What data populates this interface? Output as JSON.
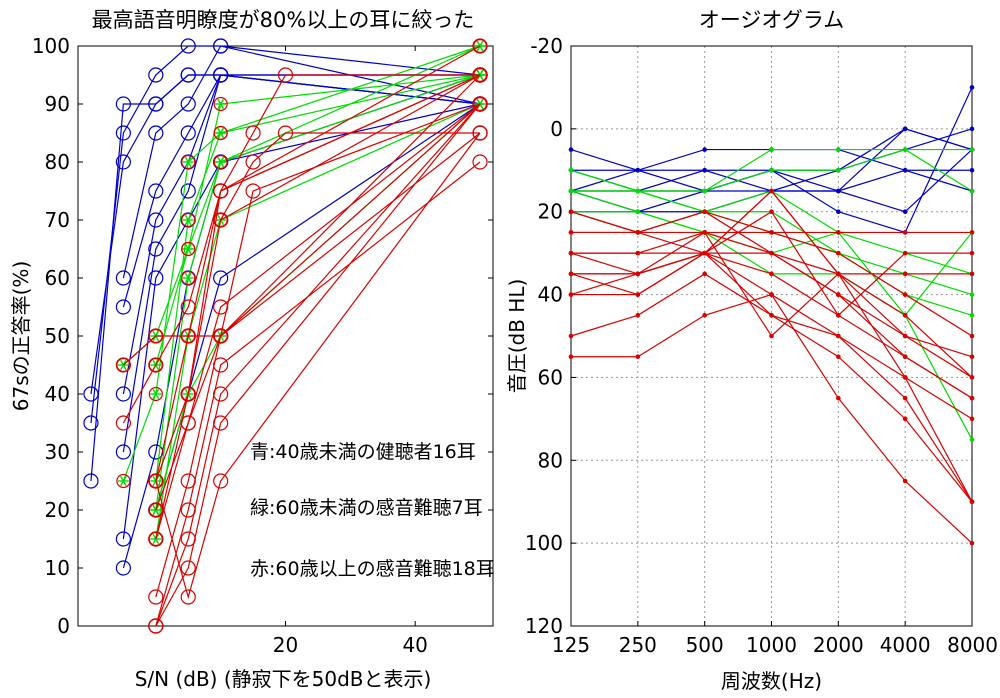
{
  "chart_data": [
    {
      "type": "line",
      "title": "最高語音明瞭度が80%以上の耳に絞った",
      "xlabel": "S/N (dB) (静寂下を50dBと表示)",
      "ylabel": "67sの正答率(%)",
      "xlim": [
        -12,
        52
      ],
      "ylim": [
        0,
        100
      ],
      "xticks": [
        "20",
        "40"
      ],
      "xtick_values": [
        20,
        40
      ],
      "yticks": [
        "0",
        "10",
        "20",
        "30",
        "40",
        "50",
        "60",
        "70",
        "80",
        "90",
        "100"
      ],
      "grid": false,
      "annotations": [
        "青:40歳未満の健聴者16耳",
        "緑:60歳未満の感音難聴7耳",
        "赤:60歳以上の感音難聴18耳"
      ],
      "x": [
        -10,
        -5,
        0,
        5,
        10,
        50
      ],
      "series": [
        {
          "color": "#0000cc",
          "values": [
            25,
            90,
            90,
            95,
            95,
            95
          ]
        },
        {
          "color": "#0000cc",
          "values": [
            35,
            85,
            95,
            100,
            100,
            95
          ]
        },
        {
          "color": "#0000cc",
          "values": [
            40,
            80,
            90,
            95,
            95,
            90
          ]
        },
        {
          "color": "#0000cc",
          "values": [
            null,
            60,
            85,
            90,
            100,
            90
          ]
        },
        {
          "color": "#0000cc",
          "values": [
            null,
            55,
            75,
            85,
            95,
            95
          ]
        },
        {
          "color": "#0000cc",
          "values": [
            null,
            40,
            70,
            80,
            95,
            90
          ]
        },
        {
          "color": "#0000cc",
          "values": [
            null,
            30,
            65,
            75,
            95,
            90
          ]
        },
        {
          "color": "#0000cc",
          "values": [
            null,
            15,
            60,
            70,
            80,
            95
          ]
        },
        {
          "color": "#0000cc",
          "values": [
            null,
            10,
            30,
            60,
            80,
            90
          ]
        },
        {
          "color": "#0000cc",
          "values": [
            null,
            null,
            20,
            40,
            60,
            90
          ]
        },
        {
          "color": "#00dd00",
          "values": [
            null,
            45,
            50,
            65,
            90,
            95
          ]
        },
        {
          "color": "#00dd00",
          "values": [
            null,
            25,
            40,
            80,
            85,
            100
          ]
        },
        {
          "color": "#00dd00",
          "values": [
            null,
            null,
            25,
            70,
            85,
            95
          ]
        },
        {
          "color": "#00dd00",
          "values": [
            null,
            null,
            20,
            60,
            80,
            95
          ]
        },
        {
          "color": "#00dd00",
          "values": [
            null,
            null,
            15,
            50,
            70,
            90
          ]
        },
        {
          "color": "#00dd00",
          "values": [
            null,
            null,
            45,
            65,
            80,
            100
          ]
        },
        {
          "color": "#00dd00",
          "values": [
            null,
            null,
            20,
            40,
            50,
            90
          ]
        },
        {
          "color": "#dd0000",
          "values": [
            null,
            45,
            50,
            50,
            50,
            95
          ]
        },
        {
          "color": "#dd0000",
          "values": [
            null,
            35,
            45,
            55,
            75,
            100
          ]
        },
        {
          "color": "#dd0000",
          "values": [
            null,
            null,
            25,
            40,
            70,
            95
          ]
        },
        {
          "color": "#dd0000",
          "values": [
            null,
            null,
            15,
            35,
            55,
            90
          ]
        },
        {
          "color": "#dd0000",
          "values": [
            null,
            null,
            5,
            25,
            50,
            85
          ]
        },
        {
          "color": "#dd0000",
          "values": [
            null,
            null,
            0,
            20,
            45,
            80
          ]
        },
        {
          "color": "#dd0000",
          "values": [
            null,
            null,
            0,
            15,
            40,
            90
          ]
        },
        {
          "color": "#dd0000",
          "values": [
            null,
            null,
            0,
            10,
            35,
            90
          ]
        },
        {
          "color": "#dd0000",
          "values": [
            null,
            null,
            25,
            5,
            25,
            85
          ]
        },
        {
          "color": "#dd0000",
          "values": [
            null,
            null,
            15,
            40,
            75,
            95
          ]
        },
        {
          "color": "#dd0000",
          "values": [
            null,
            null,
            20,
            35,
            50,
            90
          ]
        },
        {
          "color": "#dd0000",
          "values": [
            null,
            null,
            25,
            50,
            75,
            95
          ]
        }
      ],
      "extra_segments": [
        {
          "color": "#dd0000",
          "x": [
            10,
            15,
            20,
            50
          ],
          "y": [
            75,
            85,
            95,
            95
          ]
        },
        {
          "color": "#dd0000",
          "x": [
            10,
            15,
            20,
            50
          ],
          "y": [
            70,
            80,
            85,
            85
          ]
        },
        {
          "color": "#dd0000",
          "x": [
            10,
            15,
            50
          ],
          "y": [
            50,
            75,
            90
          ]
        }
      ]
    },
    {
      "type": "line",
      "title": "オージオグラム",
      "xlabel": "周波数(Hz)",
      "ylabel": "音圧(dB HL)",
      "categories": [
        "125",
        "250",
        "500",
        "1000",
        "2000",
        "4000",
        "8000"
      ],
      "ylim": [
        -20,
        120
      ],
      "y_inverted": true,
      "yticks": [
        "-20",
        "0",
        "20",
        "40",
        "60",
        "80",
        "100",
        "120"
      ],
      "grid": true,
      "series": [
        {
          "color": "#0000cc",
          "values": [
            5,
            10,
            5,
            5,
            5,
            10,
            10
          ]
        },
        {
          "color": "#0000cc",
          "values": [
            10,
            10,
            15,
            10,
            15,
            0,
            5
          ]
        },
        {
          "color": "#0000cc",
          "values": [
            15,
            20,
            15,
            10,
            10,
            5,
            0
          ]
        },
        {
          "color": "#0000cc",
          "values": [
            15,
            15,
            15,
            15,
            15,
            20,
            5
          ]
        },
        {
          "color": "#0000cc",
          "values": [
            10,
            15,
            10,
            10,
            20,
            25,
            -10
          ]
        },
        {
          "color": "#0000cc",
          "values": [
            20,
            20,
            20,
            15,
            10,
            0,
            5
          ]
        },
        {
          "color": "#0000cc",
          "values": [
            15,
            10,
            10,
            15,
            15,
            10,
            15
          ]
        },
        {
          "color": "#00dd00",
          "values": [
            10,
            15,
            15,
            5,
            5,
            5,
            5
          ]
        },
        {
          "color": "#00dd00",
          "values": [
            15,
            20,
            25,
            30,
            25,
            45,
            75
          ]
        },
        {
          "color": "#00dd00",
          "values": [
            10,
            15,
            20,
            25,
            30,
            35,
            40
          ]
        },
        {
          "color": "#00dd00",
          "values": [
            15,
            15,
            15,
            10,
            10,
            5,
            15
          ]
        },
        {
          "color": "#00dd00",
          "values": [
            20,
            20,
            25,
            35,
            35,
            45,
            25
          ]
        },
        {
          "color": "#00dd00",
          "values": [
            15,
            15,
            20,
            15,
            25,
            30,
            35
          ]
        },
        {
          "color": "#00dd00",
          "values": [
            20,
            25,
            20,
            20,
            30,
            40,
            45
          ]
        },
        {
          "color": "#dd0000",
          "values": [
            20,
            25,
            25,
            25,
            25,
            25,
            25
          ]
        },
        {
          "color": "#dd0000",
          "values": [
            25,
            25,
            30,
            30,
            35,
            35,
            35
          ]
        },
        {
          "color": "#dd0000",
          "values": [
            30,
            30,
            25,
            30,
            40,
            50,
            60
          ]
        },
        {
          "color": "#dd0000",
          "values": [
            35,
            35,
            30,
            35,
            45,
            55,
            65
          ]
        },
        {
          "color": "#dd0000",
          "values": [
            40,
            40,
            30,
            40,
            50,
            60,
            70
          ]
        },
        {
          "color": "#dd0000",
          "values": [
            50,
            45,
            35,
            45,
            55,
            70,
            90
          ]
        },
        {
          "color": "#dd0000",
          "values": [
            55,
            55,
            45,
            40,
            65,
            85,
            100
          ]
        },
        {
          "color": "#dd0000",
          "values": [
            30,
            30,
            30,
            15,
            35,
            60,
            90
          ]
        },
        {
          "color": "#dd0000",
          "values": [
            35,
            35,
            25,
            50,
            35,
            50,
            55
          ]
        },
        {
          "color": "#dd0000",
          "values": [
            40,
            35,
            30,
            20,
            45,
            30,
            30
          ]
        },
        {
          "color": "#dd0000",
          "values": [
            25,
            25,
            20,
            25,
            30,
            40,
            50
          ]
        },
        {
          "color": "#dd0000",
          "values": [
            30,
            35,
            30,
            15,
            35,
            45,
            60
          ]
        },
        {
          "color": "#dd0000",
          "values": [
            20,
            25,
            20,
            30,
            40,
            55,
            65
          ]
        },
        {
          "color": "#dd0000",
          "values": [
            35,
            40,
            30,
            45,
            50,
            65,
            90
          ]
        }
      ]
    }
  ]
}
